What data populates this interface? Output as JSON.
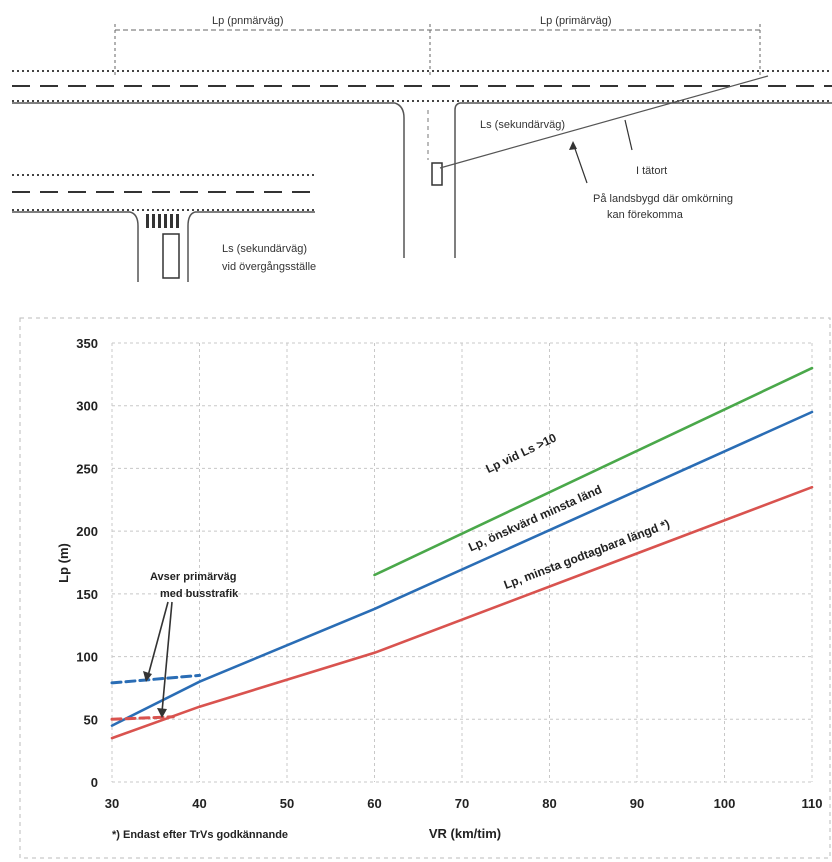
{
  "diagram": {
    "lp_label_1": "Lp (pnmärväg)",
    "lp_label_2": "Lp (primärväg)",
    "ls_label_main": "Ls (sekundärväg)",
    "i_tatort": "I tätort",
    "landsbygd_line1": "På landsbygd där omkörning",
    "landsbygd_line2": "kan förekomma",
    "ls_label_cross": "Ls (sekundärväg)",
    "overgangsstalle": "vid övergångsställe"
  },
  "chart_data": {
    "type": "line",
    "xlabel": "VR (km/tim)",
    "ylabel": "Lp (m)",
    "xlim": [
      30,
      110
    ],
    "ylim": [
      0,
      350
    ],
    "x_ticks": [
      "30",
      "40",
      "50",
      "60",
      "70",
      "80",
      "90",
      "100",
      "110"
    ],
    "y_ticks": [
      "0",
      "50",
      "100",
      "150",
      "200",
      "250",
      "300",
      "350"
    ],
    "grid": true,
    "series": [
      {
        "name": "Lp vid Ls >10",
        "color": "#4aa84a",
        "style": "solid",
        "x": [
          60,
          110
        ],
        "y": [
          165,
          330
        ]
      },
      {
        "name": "Lp, önskvärd minsta länd",
        "color": "#2a6db5",
        "style": "solid",
        "x": [
          30,
          40,
          60,
          110
        ],
        "y": [
          45,
          80,
          138,
          295
        ]
      },
      {
        "name": "Lp, minsta godtagbara längd *)",
        "color": "#d9534f",
        "style": "solid",
        "x": [
          30,
          40,
          60,
          110
        ],
        "y": [
          35,
          60,
          103,
          235
        ]
      },
      {
        "name": "",
        "color": "#2a6db5",
        "style": "dashed",
        "x": [
          30,
          40
        ],
        "y": [
          79,
          85
        ]
      },
      {
        "name": "",
        "color": "#d9534f",
        "style": "dashed",
        "x": [
          30,
          37
        ],
        "y": [
          50,
          52
        ]
      }
    ],
    "annotation_busstrafik": [
      "Avser primärväg",
      "med busstrafik"
    ],
    "footnote": "*) Endast efter TrVs godkännande"
  }
}
